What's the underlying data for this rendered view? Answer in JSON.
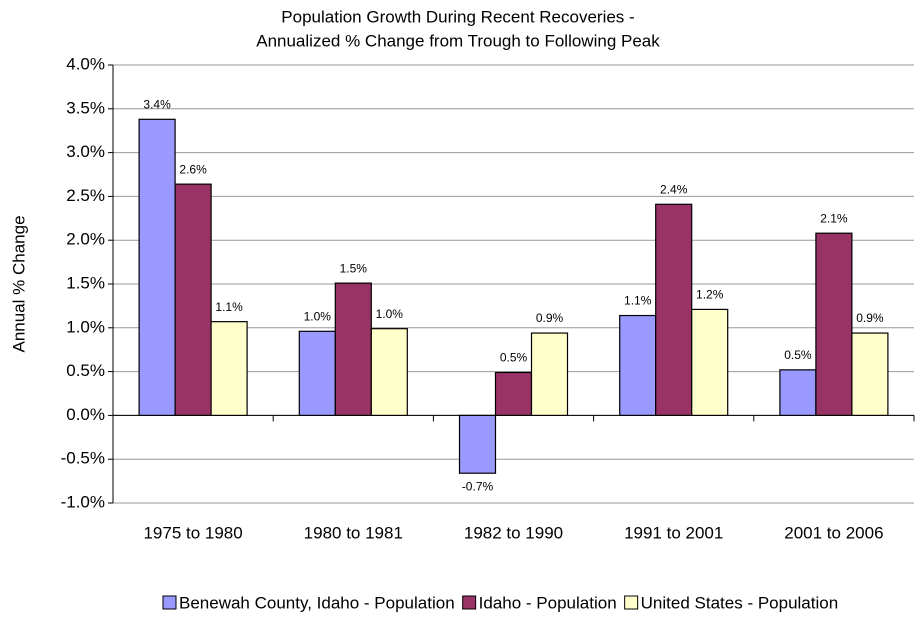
{
  "chart_data": {
    "type": "bar",
    "title": "Population Growth During Recent Recoveries -",
    "subtitle": "Annualized % Change from Trough to Following Peak",
    "y_label": "Annual % Change",
    "categories": [
      "1975 to 1980",
      "1980 to 1981",
      "1982 to 1990",
      "1991 to 2001",
      "2001 to 2006"
    ],
    "series": [
      {
        "name": "Benewah County, Idaho - Population",
        "color": "#9999ff",
        "values": [
          3.38,
          0.96,
          -0.66,
          1.14,
          0.52
        ],
        "value_labels": [
          "3.4%",
          "1.0%",
          "-0.7%",
          "1.1%",
          "0.5%"
        ]
      },
      {
        "name": "Idaho - Population",
        "color": "#993366",
        "values": [
          2.64,
          1.51,
          0.49,
          2.41,
          2.08
        ],
        "value_labels": [
          "2.6%",
          "1.5%",
          "0.5%",
          "2.4%",
          "2.1%"
        ]
      },
      {
        "name": "United States - Population",
        "color": "#ffffcc",
        "values": [
          1.07,
          0.99,
          0.94,
          1.21,
          0.94
        ],
        "value_labels": [
          "1.1%",
          "1.0%",
          "0.9%",
          "1.2%",
          "0.9%"
        ]
      }
    ],
    "ylim": [
      -1,
      4
    ],
    "yticks": [
      {
        "value": -1,
        "label": "-1.0%"
      },
      {
        "value": -0.5,
        "label": "-0.5%"
      },
      {
        "value": 0,
        "label": "0.0%"
      },
      {
        "value": 0.5,
        "label": "0.5%"
      },
      {
        "value": 1,
        "label": "1.0%"
      },
      {
        "value": 1.5,
        "label": "1.5%"
      },
      {
        "value": 2,
        "label": "2.0%"
      },
      {
        "value": 2.5,
        "label": "2.5%"
      },
      {
        "value": 3,
        "label": "3.0%"
      },
      {
        "value": 3.5,
        "label": "3.5%"
      },
      {
        "value": 4,
        "label": "4.0%"
      }
    ],
    "grid": true,
    "legend": "bottom"
  }
}
